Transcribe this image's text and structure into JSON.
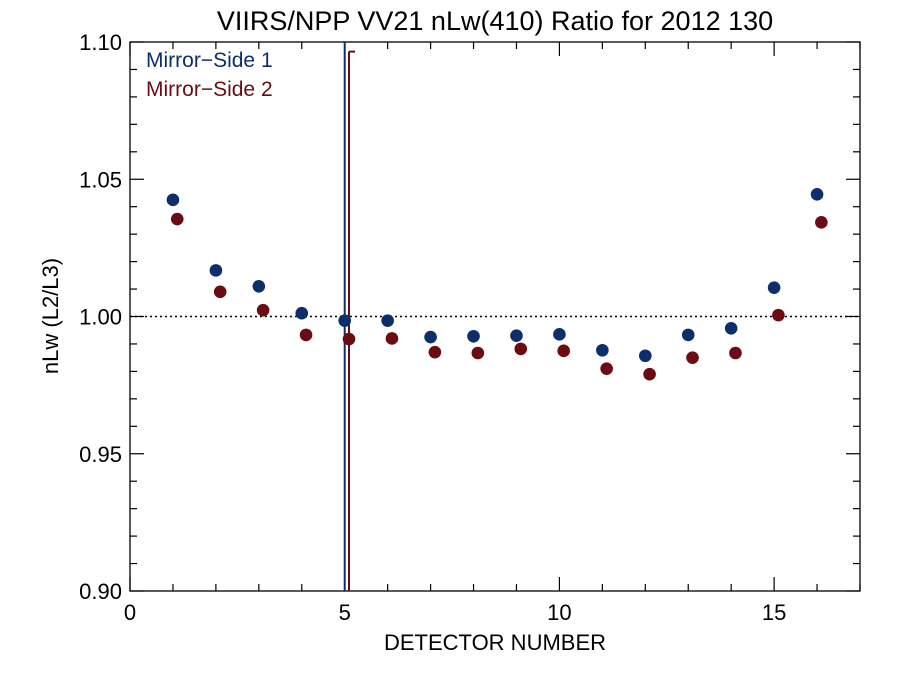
{
  "chart_data": {
    "type": "scatter",
    "title": "VIIRS/NPP VV21 nLw(410) Ratio for 2012 130",
    "xlabel": "DETECTOR NUMBER",
    "ylabel": "nLw (L2/L3)",
    "xlim": [
      0,
      17
    ],
    "ylim": [
      0.9,
      1.1
    ],
    "x_ticks": [
      0,
      5,
      10,
      15
    ],
    "x_tick_labels": [
      "0",
      "5",
      "10",
      "15"
    ],
    "y_ticks": [
      0.9,
      0.95,
      1.0,
      1.05,
      1.1
    ],
    "y_tick_labels": [
      "0.90",
      "0.95",
      "1.00",
      "1.05",
      "1.10"
    ],
    "reference_line": {
      "y": 1.0,
      "style": "dotted"
    },
    "legend_position": "top-left",
    "series": [
      {
        "name": "Mirror−Side 1",
        "color": "#0c2f6b",
        "x": [
          1,
          2,
          3,
          4,
          5,
          6,
          7,
          8,
          9,
          10,
          11,
          12,
          13,
          14,
          15,
          16
        ],
        "y": [
          1.0425,
          1.0168,
          1.011,
          1.0012,
          0.9985,
          0.9985,
          0.9925,
          0.9928,
          0.993,
          0.9935,
          0.9877,
          0.9857,
          0.9933,
          0.9957,
          1.0105,
          1.0445
        ],
        "vline": {
          "x": 5.0,
          "y_top": 1.1
        }
      },
      {
        "name": "Mirror−Side 2",
        "color": "#6b0c12",
        "x_offset": 0.1,
        "x": [
          1,
          2,
          3,
          4,
          5,
          6,
          7,
          8,
          9,
          10,
          11,
          12,
          13,
          14,
          15,
          16
        ],
        "y": [
          1.0355,
          1.009,
          1.0023,
          0.9933,
          0.9918,
          0.992,
          0.987,
          0.9867,
          0.9882,
          0.9875,
          0.981,
          0.979,
          0.985,
          0.9867,
          1.0005,
          1.0343
        ],
        "vline": {
          "x": 5.1,
          "y_top": 1.0965
        }
      }
    ]
  }
}
